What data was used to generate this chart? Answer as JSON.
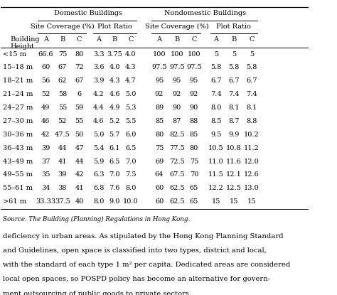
{
  "title_domestic": "Domestic Buildings",
  "title_nondomestic": "Nondomestic Buildings",
  "sub_title_site_cov": "Site Coverage (%)",
  "sub_title_plot": "Plot Ratio",
  "row_header_label": [
    "<15 m",
    "15–18 m",
    "18–21 m",
    "21–24 m",
    "24–27 m",
    "27–30 m",
    "30–36 m",
    "36–43 m",
    "43–49 m",
    "49–55 m",
    "55–61 m",
    ">61 m"
  ],
  "domestic_site_cov": [
    [
      "66.6",
      "75",
      "80"
    ],
    [
      "60",
      "67",
      "72"
    ],
    [
      "56",
      "62",
      "67"
    ],
    [
      "52",
      "58",
      "6"
    ],
    [
      "49",
      "55",
      "59"
    ],
    [
      "46",
      "52",
      "55"
    ],
    [
      "42",
      "47.5",
      "50"
    ],
    [
      "39",
      "44",
      "47"
    ],
    [
      "37",
      "41",
      "44"
    ],
    [
      "35",
      "39",
      "42"
    ],
    [
      "34",
      "38",
      "41"
    ],
    [
      "33.33",
      "37.5",
      "40"
    ]
  ],
  "domestic_plot": [
    [
      "3.3",
      "3.75",
      "4.0"
    ],
    [
      "3.6",
      "4.0",
      "4.3"
    ],
    [
      "3.9",
      "4.3",
      "4.7"
    ],
    [
      "4.2",
      "4.6",
      "5.0"
    ],
    [
      "4.4",
      "4.9",
      "5.3"
    ],
    [
      "4.6",
      "5.2",
      "5.5"
    ],
    [
      "5.0",
      "5.7",
      "6.0"
    ],
    [
      "5.4",
      "6.1",
      "6.5"
    ],
    [
      "5.9",
      "6.5",
      "7.0"
    ],
    [
      "6.3",
      "7.0",
      "7.5"
    ],
    [
      "6.8",
      "7.6",
      "8.0"
    ],
    [
      "8.0",
      "9.0",
      "10.0"
    ]
  ],
  "nondomestic_site_cov": [
    [
      "100",
      "100",
      "100"
    ],
    [
      "97.5",
      "97.5",
      "97.5"
    ],
    [
      "95",
      "95",
      "95"
    ],
    [
      "92",
      "92",
      "92"
    ],
    [
      "89",
      "90",
      "90"
    ],
    [
      "85",
      "87",
      "88"
    ],
    [
      "80",
      "82.5",
      "85"
    ],
    [
      "75",
      "77.5",
      "80"
    ],
    [
      "69",
      "72.5",
      "75"
    ],
    [
      "64",
      "67.5",
      "70"
    ],
    [
      "60",
      "62.5",
      "65"
    ],
    [
      "60",
      "62.5",
      "65"
    ]
  ],
  "nondomestic_plot": [
    [
      "5",
      "5",
      "5"
    ],
    [
      "5.8",
      "5.8",
      "5.8"
    ],
    [
      "6.7",
      "6.7",
      "6.7"
    ],
    [
      "7.4",
      "7.4",
      "7.4"
    ],
    [
      "8.0",
      "8.1",
      "8.1"
    ],
    [
      "8.5",
      "8.7",
      "8.8"
    ],
    [
      "9.5",
      "9.9",
      "10.2"
    ],
    [
      "10.5",
      "10.8",
      "11.2"
    ],
    [
      "11.0",
      "11.6",
      "12.0"
    ],
    [
      "11.5",
      "12.1",
      "12.6"
    ],
    [
      "12.2",
      "12.5",
      "13.0"
    ],
    [
      "15",
      "15",
      "15"
    ]
  ],
  "source_text": "Source. The Building (Planning) Regulations in Hong Kong.",
  "body_text": "deficiency in urban areas. As stipulated by the Hong Kong Planning Standard\nand Guidelines, open space is classified into two types, district and local,\nwith the standard of each type 1 m² per capita. Dedicated areas are considered\nlocal open spaces, so POSPD policy has become an alternative for govern-\nment outsourcing of public goods to private sectors.",
  "background_color": "#ffffff",
  "text_color": "#000000",
  "font_size_header": 7.0,
  "font_size_data": 7.0,
  "font_size_source": 6.3,
  "font_size_body": 7.2
}
